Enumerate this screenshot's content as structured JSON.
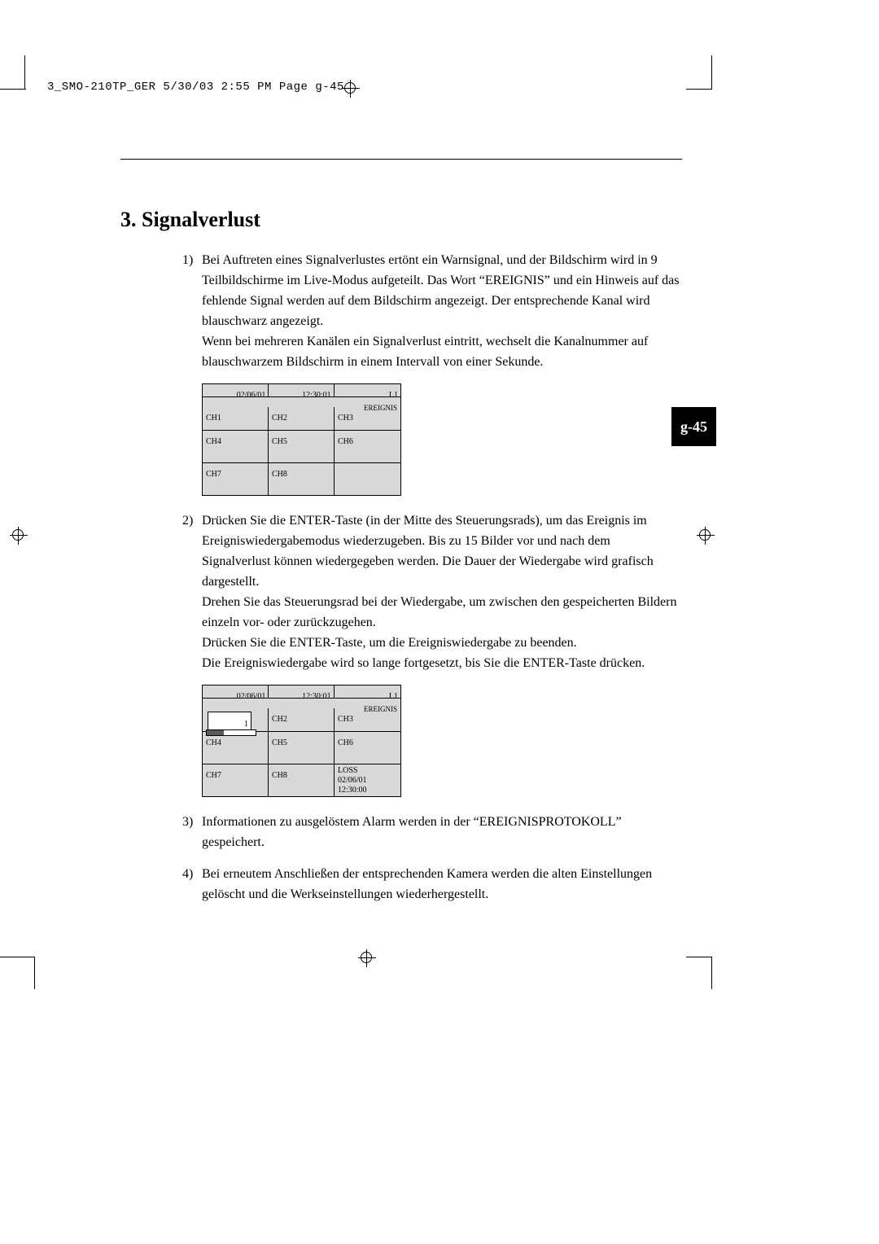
{
  "header_line": "3_SMO-210TP_GER  5/30/03  2:55 PM  Page g-45",
  "section_number": "3.",
  "section_title": "Signalverlust",
  "page_tab": "g-45",
  "items": [
    {
      "num": "1)",
      "paras": [
        "Bei Auftreten eines Signalverlustes ertönt ein Warnsignal, und der Bildschirm wird in 9 Teilbildschirme im Live-Modus aufgeteilt. Das Wort “EREIGNIS” und ein Hinweis auf das fehlende Signal werden auf dem Bildschirm angezeigt. Der entsprechende Kanal wird blauschwarz angezeigt.",
        "Wenn bei mehreren Kanälen ein Signalverlust eintritt, wechselt die Kanalnummer auf blauschwarzem Bildschirm in einem Intervall von einer Sekunde."
      ]
    },
    {
      "num": "2)",
      "paras": [
        "Drücken Sie die ENTER-Taste (in der Mitte des Steuerungsrads), um das Ereignis im Ereigniswiedergabemodus wiederzugeben. Bis zu 15 Bilder vor und nach dem Signalverlust können wiedergegeben werden. Die Dauer der Wiedergabe wird grafisch dargestellt.",
        "Drehen Sie das Steuerungsrad bei der Wiedergabe, um zwischen den gespeicherten Bildern einzeln vor- oder zurückzugehen.",
        "Drücken Sie die ENTER-Taste, um die Ereigniswiedergabe zu beenden.",
        "Die Ereigniswiedergabe wird so lange fortgesetzt, bis Sie die ENTER-Taste drücken."
      ]
    },
    {
      "num": "3)",
      "paras": [
        "Informationen zu ausgelöstem Alarm werden in der “EREIGNISPROTOKOLL” gespeichert."
      ]
    },
    {
      "num": "4)",
      "paras": [
        "Bei erneutem Anschließen der entsprechenden Kamera werden die alten Einstellungen gelöscht und die Werkseinstellungen wiederhergestellt."
      ]
    }
  ],
  "grid1": {
    "date": "02/06/01",
    "time": "12:30:01",
    "l1": "L1",
    "ereignis": "EREIGNIS",
    "cells": [
      "CH1",
      "CH2",
      "CH3",
      "CH4",
      "CH5",
      "CH6",
      "CH7",
      "CH8",
      ""
    ]
  },
  "grid2": {
    "date": "02/06/01",
    "time": "12:30:01",
    "l1": "L1",
    "ereignis": "EREIGNIS",
    "cell1_tick": "1",
    "progress_pct": 35,
    "cells_rest": [
      "CH2",
      "CH3",
      "CH4",
      "CH5",
      "CH6",
      "CH7",
      "CH8"
    ],
    "info_loss": "LOSS",
    "info_date": "02/06/01",
    "info_time": "12:30:00"
  },
  "colors": {
    "grid_bg": "#d8d8d8",
    "progress_fill": "#5a5a5a",
    "tab_bg": "#000000",
    "tab_fg": "#ffffff"
  }
}
